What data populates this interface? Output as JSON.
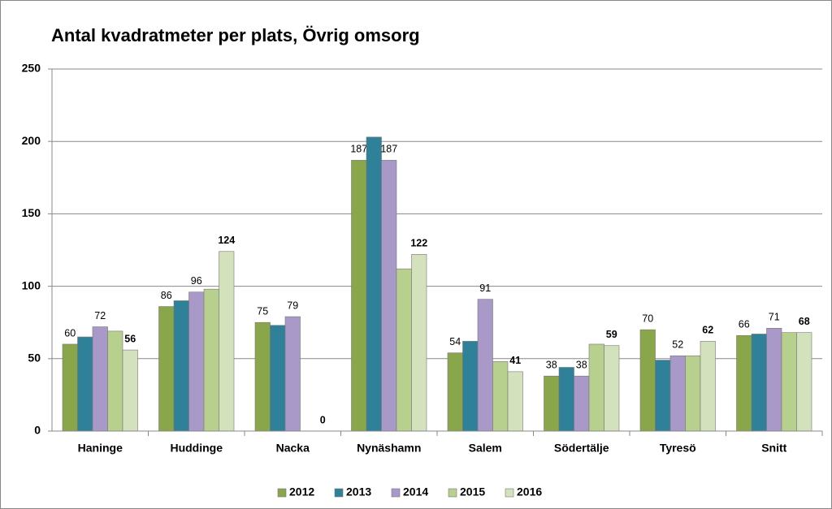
{
  "chart_data": {
    "type": "bar",
    "title": "Antal kvadratmeter per plats, Övrig omsorg",
    "categories": [
      "Haninge",
      "Huddinge",
      "Nacka",
      "Nynäshamn",
      "Salem",
      "Södertälje",
      "Tyresö",
      "Snitt"
    ],
    "series": [
      {
        "name": "2012",
        "color": "#8aa64a",
        "values": [
          60,
          86,
          75,
          187,
          54,
          38,
          70,
          66
        ],
        "value_labels": [
          "60",
          "86",
          "75",
          "187",
          "54",
          "38",
          "70",
          "66"
        ]
      },
      {
        "name": "2013",
        "color": "#2f8199",
        "values": [
          65,
          90,
          73,
          203,
          62,
          44,
          49,
          67
        ],
        "value_labels": [
          null,
          null,
          null,
          null,
          null,
          null,
          null,
          null
        ]
      },
      {
        "name": "2014",
        "color": "#a899c9",
        "values": [
          72,
          96,
          79,
          187,
          91,
          38,
          52,
          71
        ],
        "value_labels": [
          "72",
          "96",
          "79",
          "187",
          "91",
          "38",
          "52",
          "71"
        ]
      },
      {
        "name": "2015",
        "color": "#b7d08e",
        "values": [
          69,
          98,
          null,
          112,
          48,
          60,
          52,
          68
        ],
        "value_labels": [
          null,
          null,
          null,
          null,
          null,
          null,
          null,
          null
        ]
      },
      {
        "name": "2016",
        "color": "#d3e2bc",
        "values": [
          56,
          124,
          0,
          122,
          41,
          59,
          62,
          68
        ],
        "value_labels": [
          "56",
          "124",
          "0",
          "122",
          "41",
          "59",
          "62",
          "68"
        ],
        "label_weight": "bold"
      }
    ],
    "ylim": [
      0,
      250
    ],
    "yticks": [
      0,
      50,
      100,
      150,
      200,
      250
    ],
    "grid": true,
    "legend": "bottom"
  }
}
